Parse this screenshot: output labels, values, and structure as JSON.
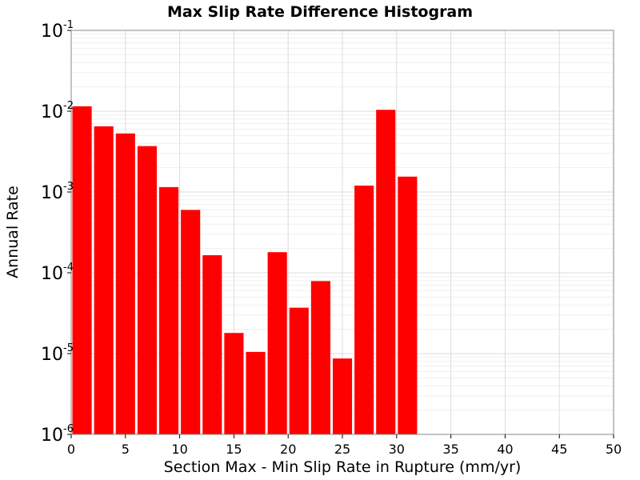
{
  "chart_data": {
    "type": "bar",
    "title": "Max Slip Rate Difference Histogram",
    "xlabel": "Section Max - Min Slip Rate in Rupture (mm/yr)",
    "ylabel": "Annual Rate",
    "xlim": [
      0,
      50
    ],
    "ylim": [
      1e-06,
      0.1
    ],
    "yscale": "log",
    "grid": true,
    "bar_color": "#ff0000",
    "bin_width": 2,
    "x": [
      1,
      3,
      5,
      7,
      9,
      11,
      13,
      15,
      17,
      19,
      21,
      23,
      25,
      27,
      29,
      31
    ],
    "values": [
      0.0115,
      0.0065,
      0.0053,
      0.0037,
      0.00115,
      0.0006,
      0.000165,
      1.8e-05,
      1.05e-05,
      0.00018,
      3.7e-05,
      7.9e-05,
      8.7e-06,
      0.0012,
      0.0104,
      0.00155
    ],
    "x_ticks": [
      0,
      5,
      10,
      15,
      20,
      25,
      30,
      35,
      40,
      45,
      50
    ],
    "y_ticks": [
      {
        "base": "10",
        "exp": "-1",
        "value": 0.1
      },
      {
        "base": "10",
        "exp": "-2",
        "value": 0.01
      },
      {
        "base": "10",
        "exp": "-3",
        "value": 0.001
      },
      {
        "base": "10",
        "exp": "-4",
        "value": 0.0001
      },
      {
        "base": "10",
        "exp": "-5",
        "value": 1e-05
      },
      {
        "base": "10",
        "exp": "-6",
        "value": 1e-06
      }
    ]
  }
}
